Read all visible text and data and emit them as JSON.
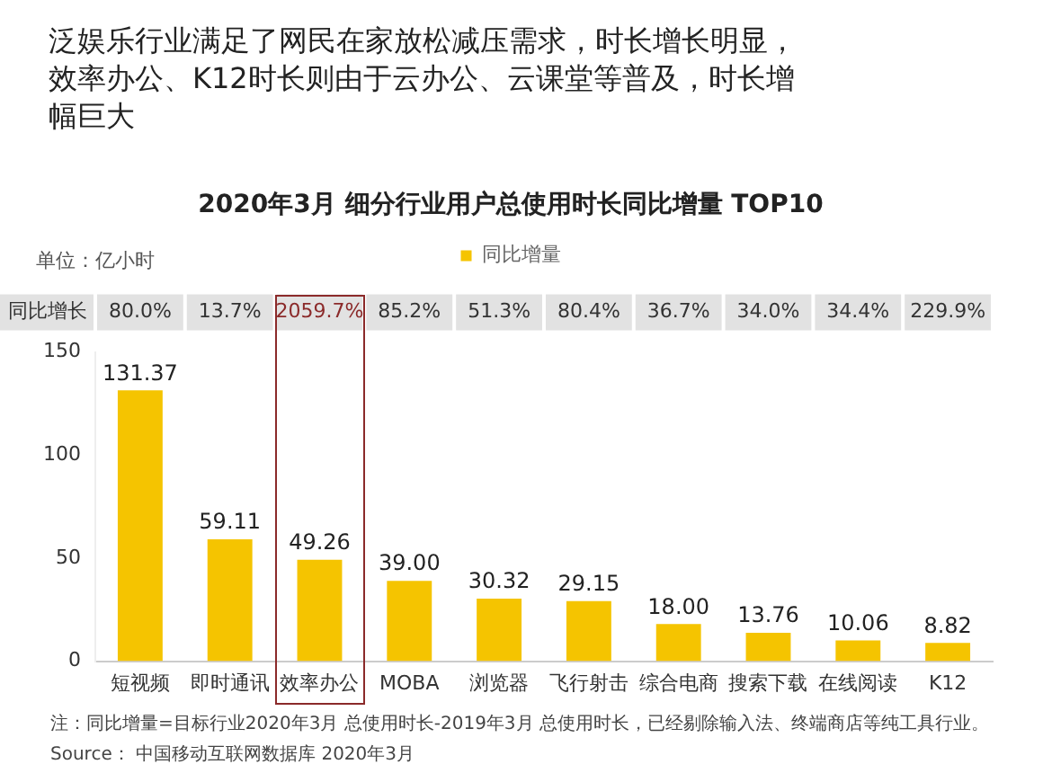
{
  "chart_data": {
    "type": "bar",
    "title": "泛娱乐行业满足了网民在家放松减压需求，时长增长明显，效率办公、K12时长则由于云办公、云课堂等普及，时长增幅巨大",
    "subtitle": "2020年3月 细分行业用户总使用时长同比增量 TOP10",
    "ylabel": "单位：亿小时",
    "categories": [
      "短视频",
      "即时通讯",
      "效率办公",
      "MOBA",
      "浏览器",
      "飞行射击",
      "综合电商",
      "搜索下载",
      "在线阅读",
      "K12"
    ],
    "series": [
      {
        "name": "同比增量",
        "color": "#f5c400",
        "values": [
          131.37,
          59.11,
          49.26,
          39.0,
          30.32,
          29.15,
          18.0,
          13.76,
          10.06,
          8.82
        ],
        "value_labels": [
          "131.37",
          "59.11",
          "49.26",
          "39.00",
          "30.32",
          "29.15",
          "18.00",
          "13.76",
          "10.06",
          "8.82"
        ]
      }
    ],
    "ylim": [
      0,
      150
    ],
    "yticks": [
      0,
      50,
      100,
      150
    ],
    "grid": false,
    "legend": "top",
    "annotations": [
      "同比增长",
      "80.0%",
      "13.7%",
      "2059.7%",
      "85.2%",
      "51.3%",
      "80.4%",
      "36.7%",
      "34.0%",
      "34.4%",
      "229.9%",
      "注：同比增量=目标行业2020年3月 总使用时长-2019年3月 总使用时长，已经剔除输入法、终端商店等纯工具行业。",
      "Source： 中国移动互联网数据库 2020年3月"
    ]
  }
}
